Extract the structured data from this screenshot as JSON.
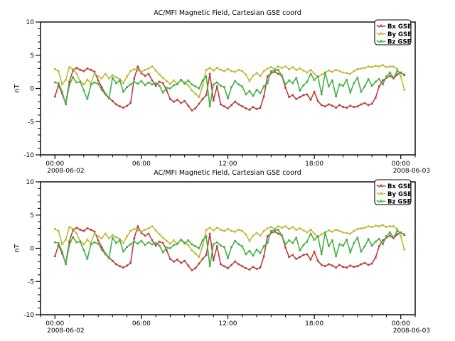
{
  "chart_data": {
    "type": "line",
    "panels": [
      {
        "title": "AC/MFI  Magnetic Field, Cartesian GSE coord",
        "ylabel": "nT",
        "ylim": [
          -10,
          10
        ]
      },
      {
        "title": "AC/MFI  Magnetic Field, Cartesian GSE coord",
        "ylabel": "nT",
        "ylim": [
          -10,
          10
        ]
      }
    ],
    "y_axis": {
      "major_ticks": [
        10,
        5,
        0,
        -5,
        -10
      ],
      "minor_interval": 1
    },
    "x_axis": {
      "range_hours": [
        -1,
        25
      ],
      "start_date": "2008-06-02",
      "end_date": "2008-06-03",
      "major_ticks": [
        {
          "hours": 0,
          "label": "00:00",
          "date": "2008-06-02"
        },
        {
          "hours": 6,
          "label": "06:00"
        },
        {
          "hours": 12,
          "label": "12:00"
        },
        {
          "hours": 18,
          "label": "18:00"
        },
        {
          "hours": 24,
          "label": "00:00",
          "date": "2008-06-03"
        }
      ],
      "minor_interval_hours": 1
    },
    "legend_position": "top-right",
    "grid": false,
    "sample_interval_hours": 0.25,
    "sample_start_hours": 0,
    "series": [
      {
        "name": "Bx GSE",
        "color": "#bc4040",
        "values": [
          -1.2,
          0.5,
          -0.8,
          -2.3,
          1.0,
          2.7,
          3.1,
          2.8,
          2.6,
          3.0,
          2.8,
          2.5,
          1.2,
          0.2,
          -0.8,
          -1.4,
          -1.9,
          -2.4,
          -2.7,
          -2.9,
          -2.6,
          -2.2,
          1.5,
          3.3,
          2.3,
          1.9,
          2.2,
          1.2,
          0.4,
          1.0,
          0.8,
          -0.3,
          -1.6,
          -2.0,
          -1.7,
          -2.2,
          -1.9,
          -2.6,
          -3.3,
          -3.0,
          -2.3,
          -1.6,
          -1.0,
          2.2,
          -1.8,
          0.3,
          -2.4,
          -2.7,
          -3.0,
          -2.5,
          -2.0,
          -2.4,
          -2.7,
          -3.0,
          -3.2,
          -2.8,
          -3.1,
          -2.9,
          -1.2,
          1.8,
          2.3,
          2.5,
          2.2,
          1.9,
          0.1,
          -1.3,
          -1.0,
          -1.6,
          -1.3,
          -1.0,
          -0.9,
          -1.7,
          -0.5,
          -1.9,
          -2.5,
          -2.7,
          -2.4,
          -2.6,
          -2.9,
          -2.5,
          -2.8,
          -2.9,
          -2.6,
          -2.8,
          -2.7,
          -2.4,
          -2.2,
          -2.5,
          -2.3,
          -1.4,
          0.3,
          1.2,
          1.6,
          1.9,
          1.5,
          2.1,
          2.4,
          2.0
        ]
      },
      {
        "name": "By GSE",
        "color": "#c2b83a",
        "values": [
          2.9,
          2.6,
          0.6,
          1.3,
          3.2,
          2.9,
          2.2,
          1.1,
          0.6,
          1.3,
          0.8,
          2.3,
          1.8,
          1.5,
          2.2,
          1.5,
          2.0,
          1.7,
          1.4,
          0.8,
          1.8,
          2.6,
          2.9,
          2.7,
          2.5,
          2.8,
          3.0,
          3.3,
          2.7,
          2.1,
          1.6,
          1.1,
          0.7,
          1.2,
          0.6,
          1.3,
          0.9,
          0.5,
          -0.3,
          -0.8,
          -1.3,
          0.4,
          2.8,
          3.1,
          2.7,
          3.1,
          2.8,
          2.6,
          2.9,
          2.6,
          2.5,
          2.8,
          2.6,
          2.1,
          1.1,
          1.9,
          2.3,
          1.9,
          2.6,
          3.0,
          3.2,
          2.9,
          3.3,
          3.1,
          3.3,
          2.9,
          3.2,
          2.8,
          3.0,
          2.7,
          2.4,
          2.8,
          2.2,
          1.7,
          2.1,
          2.4,
          2.7,
          2.5,
          2.8,
          2.6,
          2.4,
          2.3,
          2.2,
          2.6,
          2.9,
          3.0,
          3.1,
          3.3,
          3.2,
          3.4,
          3.3,
          3.5,
          3.2,
          3.3,
          3.3,
          2.9,
          1.8,
          -0.2
        ]
      },
      {
        "name": "Bz GSE",
        "color": "#45b045",
        "values": [
          0.9,
          0.8,
          -0.5,
          -2.4,
          0.5,
          1.7,
          0.9,
          1.0,
          -0.3,
          -1.6,
          0.6,
          0.9,
          0.7,
          -0.2,
          -0.9,
          -1.5,
          1.6,
          0.8,
          1.2,
          -0.5,
          0.2,
          0.6,
          1.0,
          0.7,
          1.1,
          0.5,
          0.9,
          0.6,
          0.8,
          0.4,
          -0.6,
          0.1,
          0.0,
          0.5,
          0.7,
          1.3,
          0.7,
          1.2,
          0.6,
          0.3,
          0.0,
          1.2,
          1.8,
          -2.7,
          0.6,
          0.9,
          0.4,
          0.2,
          -1.5,
          0.2,
          1.1,
          0.6,
          0.3,
          -0.9,
          -0.4,
          -1.1,
          -0.2,
          -0.7,
          0.3,
          0.8,
          2.6,
          2.7,
          2.8,
          1.9,
          0.6,
          1.2,
          0.8,
          1.6,
          -0.3,
          0.5,
          1.0,
          2.2,
          1.3,
          1.8,
          -0.9,
          2.4,
          0.3,
          1.2,
          -1.2,
          0.6,
          0.4,
          1.3,
          -0.6,
          0.8,
          1.6,
          -0.5,
          0.3,
          1.4,
          0.4,
          1.0,
          1.4,
          0.6,
          1.8,
          2.4,
          1.6,
          2.6,
          2.3,
          2.1
        ]
      }
    ],
    "colors": {
      "axis": "#000000",
      "background": "#ffffff"
    }
  }
}
